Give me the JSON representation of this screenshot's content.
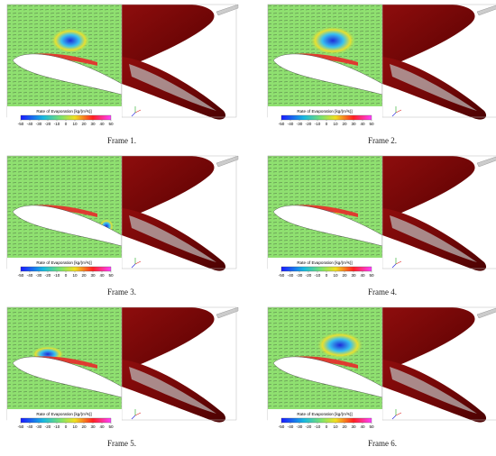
{
  "frames": [
    {
      "caption": "Frame 1."
    },
    {
      "caption": "Frame 2."
    },
    {
      "caption": "Frame 3."
    },
    {
      "caption": "Frame 4."
    },
    {
      "caption": "Frame 5."
    },
    {
      "caption": "Frame 6."
    }
  ],
  "colorbar": {
    "label": "Rate of Evaporation [kg/(m³s)]",
    "ticks": [
      -50,
      -40,
      -30,
      -20,
      -10,
      0,
      10,
      20,
      30,
      40,
      50
    ]
  }
}
